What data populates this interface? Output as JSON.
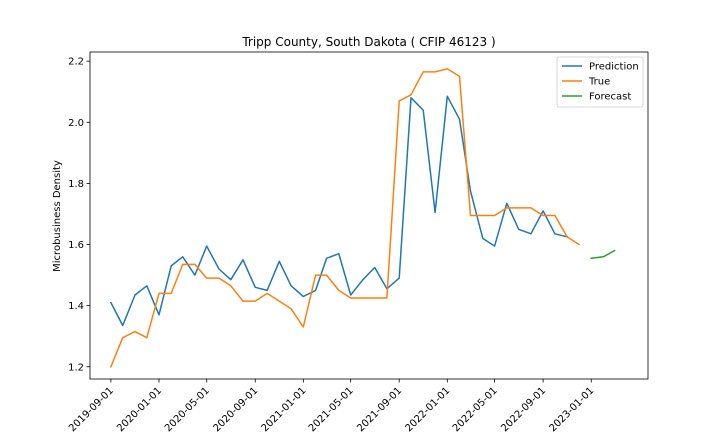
{
  "chart_data": {
    "type": "line",
    "title": "Tripp County, South Dakota ( CFIP 46123 )",
    "xlabel": "",
    "ylabel": "Microbusiness Density",
    "ylim": [
      1.16,
      2.23
    ],
    "xlim": [
      "2019-07-10",
      "2023-05-25"
    ],
    "x_ticks": [
      "2019-09-01",
      "2020-01-01",
      "2020-05-01",
      "2020-09-01",
      "2021-01-01",
      "2021-05-01",
      "2021-09-01",
      "2022-01-01",
      "2022-05-01",
      "2022-09-01",
      "2023-01-01"
    ],
    "y_ticks": [
      1.2,
      1.4,
      1.6,
      1.8,
      2.0,
      2.2
    ],
    "legend_position": "top-right",
    "grid": false,
    "series": [
      {
        "name": "Prediction",
        "color": "#1f77b4",
        "x": [
          "2019-09-01",
          "2019-10-01",
          "2019-11-01",
          "2019-12-01",
          "2020-01-01",
          "2020-02-01",
          "2020-03-01",
          "2020-04-01",
          "2020-05-01",
          "2020-06-01",
          "2020-07-01",
          "2020-08-01",
          "2020-09-01",
          "2020-10-01",
          "2020-11-01",
          "2020-12-01",
          "2021-01-01",
          "2021-02-01",
          "2021-03-01",
          "2021-04-01",
          "2021-05-01",
          "2021-06-01",
          "2021-07-01",
          "2021-08-01",
          "2021-09-01",
          "2021-10-01",
          "2021-11-01",
          "2021-12-01",
          "2022-01-01",
          "2022-02-01",
          "2022-03-01",
          "2022-04-01",
          "2022-05-01",
          "2022-06-01",
          "2022-07-01",
          "2022-08-01",
          "2022-09-01",
          "2022-10-01",
          "2022-11-01"
        ],
        "y": [
          1.41,
          1.335,
          1.435,
          1.465,
          1.37,
          1.53,
          1.56,
          1.5,
          1.595,
          1.52,
          1.485,
          1.55,
          1.46,
          1.45,
          1.545,
          1.465,
          1.43,
          1.45,
          1.555,
          1.57,
          1.435,
          1.485,
          1.525,
          1.455,
          1.49,
          2.08,
          2.04,
          1.705,
          2.085,
          2.01,
          1.775,
          1.62,
          1.595,
          1.735,
          1.65,
          1.635,
          1.71,
          1.635,
          1.625
        ]
      },
      {
        "name": "True",
        "color": "#ff7f0e",
        "x": [
          "2019-09-01",
          "2019-10-01",
          "2019-11-01",
          "2019-12-01",
          "2020-01-01",
          "2020-02-01",
          "2020-03-01",
          "2020-04-01",
          "2020-05-01",
          "2020-06-01",
          "2020-07-01",
          "2020-08-01",
          "2020-09-01",
          "2020-10-01",
          "2020-11-01",
          "2020-12-01",
          "2021-01-01",
          "2021-02-01",
          "2021-03-01",
          "2021-04-01",
          "2021-05-01",
          "2021-06-01",
          "2021-07-01",
          "2021-08-01",
          "2021-09-01",
          "2021-10-01",
          "2021-11-01",
          "2021-12-01",
          "2022-01-01",
          "2022-02-01",
          "2022-03-01",
          "2022-04-01",
          "2022-05-01",
          "2022-06-01",
          "2022-07-01",
          "2022-08-01",
          "2022-09-01",
          "2022-10-01",
          "2022-11-01",
          "2022-12-01"
        ],
        "y": [
          1.2,
          1.295,
          1.315,
          1.295,
          1.44,
          1.44,
          1.535,
          1.535,
          1.49,
          1.49,
          1.465,
          1.415,
          1.415,
          1.44,
          1.415,
          1.39,
          1.33,
          1.5,
          1.5,
          1.45,
          1.425,
          1.425,
          1.425,
          1.425,
          2.07,
          2.09,
          2.165,
          2.165,
          2.175,
          2.15,
          1.695,
          1.695,
          1.695,
          1.72,
          1.72,
          1.72,
          1.695,
          1.695,
          1.625,
          1.6
        ]
      },
      {
        "name": "Forecast",
        "color": "#2ca02c",
        "x": [
          "2023-01-01",
          "2023-02-01",
          "2023-03-01"
        ],
        "y": [
          1.555,
          1.56,
          1.58
        ]
      }
    ]
  }
}
